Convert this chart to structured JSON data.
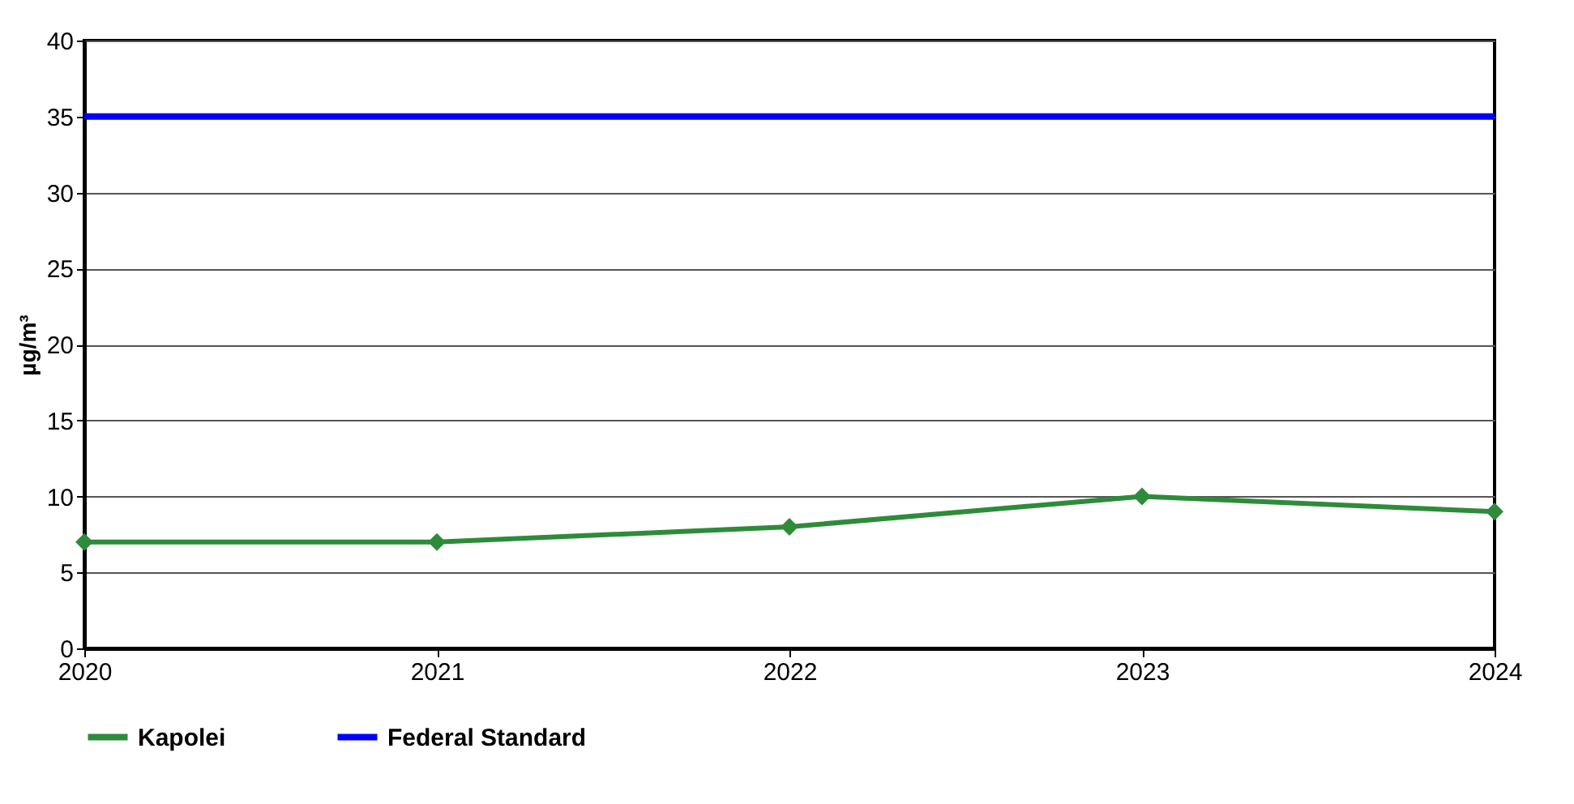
{
  "chart_data": {
    "type": "line",
    "ylabel": "µg/m³",
    "x": [
      2020,
      2021,
      2022,
      2023,
      2024
    ],
    "xlim": [
      2020,
      2024
    ],
    "xticks": [
      2020,
      2021,
      2022,
      2023,
      2024
    ],
    "ylim": [
      0,
      40
    ],
    "yticks": [
      0,
      5,
      10,
      15,
      20,
      25,
      30,
      35,
      40
    ],
    "grid": "y",
    "legend": "bottom",
    "series": [
      {
        "name": "Kapolei",
        "color": "#2e8b3a",
        "values": [
          7,
          7,
          8,
          10,
          9
        ],
        "marker": "diamond"
      },
      {
        "name": "Federal Standard",
        "color": "#0000ff",
        "values": [
          35,
          35,
          35,
          35,
          35
        ],
        "marker": "none"
      }
    ]
  }
}
